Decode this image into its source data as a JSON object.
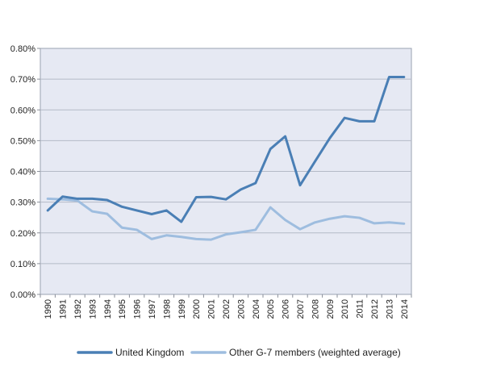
{
  "chart_data": {
    "type": "line",
    "title": "",
    "xlabel": "",
    "ylabel": "",
    "x": [
      "1990",
      "1991",
      "1992",
      "1993",
      "1994",
      "1995",
      "1996",
      "1997",
      "1998",
      "1999",
      "2000",
      "2001",
      "2002",
      "2003",
      "2004",
      "2005",
      "2006",
      "2007",
      "2008",
      "2009",
      "2010",
      "2011",
      "2012",
      "2013",
      "2014"
    ],
    "ylim": [
      0,
      0.8
    ],
    "yticks": [
      0,
      0.1,
      0.2,
      0.3,
      0.4,
      0.5,
      0.6,
      0.7,
      0.8
    ],
    "ytick_labels": [
      "0.00%",
      "0.10%",
      "0.20%",
      "0.30%",
      "0.40%",
      "0.50%",
      "0.60%",
      "0.70%",
      "0.80%"
    ],
    "grid": true,
    "legend_position": "bottom",
    "series": [
      {
        "name": "United Kingdom",
        "color": "#4a7fb5",
        "values": [
          0.273,
          0.318,
          0.311,
          0.311,
          0.307,
          0.285,
          0.273,
          0.261,
          0.273,
          0.236,
          0.316,
          0.317,
          0.309,
          0.341,
          0.362,
          0.473,
          0.514,
          0.355,
          0.432,
          0.508,
          0.574,
          0.563,
          0.563,
          0.707,
          0.707
        ]
      },
      {
        "name": "Other G-7 members (weighted average)",
        "color": "#9ebddf",
        "values": [
          0.311,
          0.309,
          0.305,
          0.27,
          0.262,
          0.217,
          0.21,
          0.18,
          0.192,
          0.187,
          0.18,
          0.178,
          0.195,
          0.202,
          0.21,
          0.283,
          0.242,
          0.212,
          0.234,
          0.246,
          0.254,
          0.249,
          0.231,
          0.234,
          0.23
        ]
      }
    ]
  }
}
